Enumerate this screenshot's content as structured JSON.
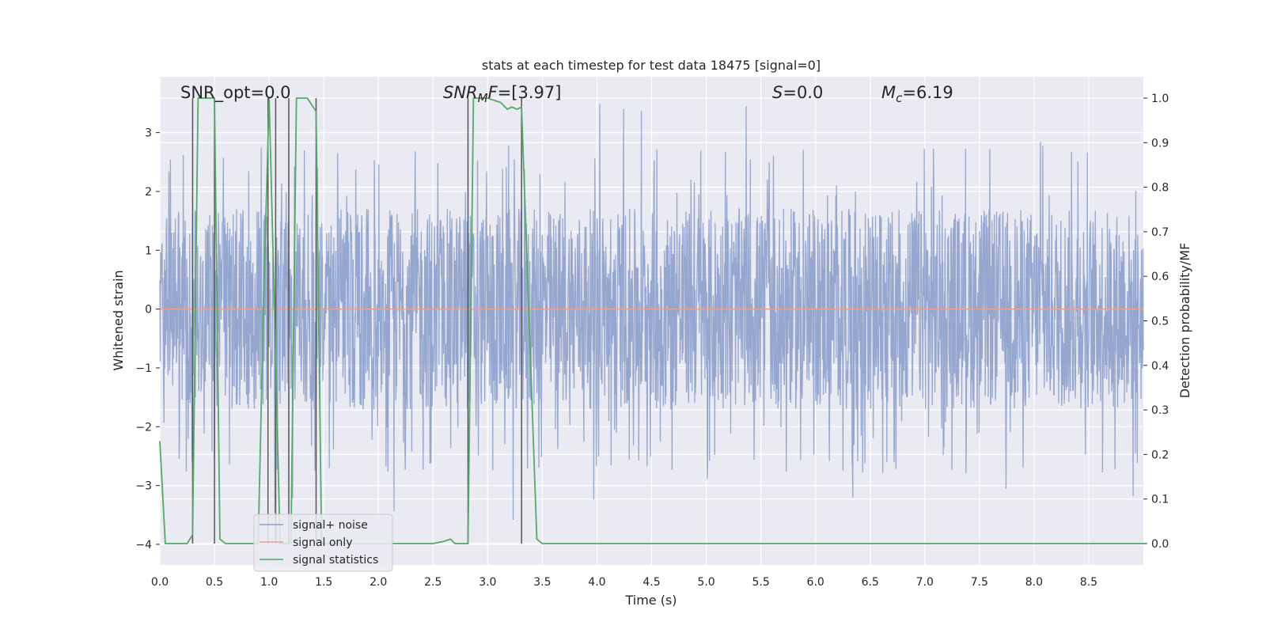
{
  "chart_data": {
    "type": "line",
    "title": "stats at each timestep for test data 18475 [signal=0]",
    "xlabel": "Time (s)",
    "ylabel": "Whitened strain",
    "y2label": "Detection probability/MF",
    "xlim": [
      0.0,
      9.0
    ],
    "ylim": [
      -4.35,
      3.95
    ],
    "y2lim": [
      -0.048,
      1.048
    ],
    "xticks": [
      "0.0",
      "0.5",
      "1.0",
      "1.5",
      "2.0",
      "2.5",
      "3.0",
      "3.5",
      "4.0",
      "4.5",
      "5.0",
      "5.5",
      "6.0",
      "6.5",
      "7.0",
      "7.5",
      "8.0",
      "8.5"
    ],
    "yticks": [
      "3",
      "2",
      "1",
      "0",
      "−1",
      "−2",
      "−3",
      "−4"
    ],
    "y2ticks": [
      "1.0",
      "0.9",
      "0.8",
      "0.7",
      "0.6",
      "0.5",
      "0.4",
      "0.3",
      "0.2",
      "0.1",
      "0.0"
    ],
    "annotations": {
      "snr_opt": "SNR_opt=0.0",
      "snr_mf_base": "SNR",
      "snr_mf_sub": "M",
      "snr_mf_rest": "F=[3.97]",
      "s_sym": "S",
      "s_val": "=0.0",
      "mc_sym": "M",
      "mc_sub": "c",
      "mc_val": "=6.19"
    },
    "legend": {
      "position": "lower-left",
      "entries": [
        "signal+ noise",
        "signal only",
        "signal statistics"
      ]
    },
    "colors": {
      "noise": "#8da0cb",
      "signal": "#e8a090",
      "stats": "#55a868",
      "vlines": "#555555",
      "background": "#eaeaf2",
      "grid": "#ffffff"
    },
    "series": [
      {
        "name": "signal+ noise",
        "kind": "dense-noise",
        "x_range": [
          0.0,
          9.0
        ],
        "typical_min": -1.8,
        "typical_max": 1.8,
        "spike_extremes": [
          -4.0,
          3.6
        ]
      },
      {
        "name": "signal only",
        "x": [
          0.0,
          9.0
        ],
        "y": [
          0.0,
          0.0
        ]
      },
      {
        "name": "signal statistics",
        "axis": "y2",
        "x": [
          0.0,
          0.05,
          0.25,
          0.3,
          0.35,
          0.5,
          0.55,
          0.6,
          0.9,
          0.95,
          1.0,
          1.05,
          1.1,
          1.15,
          1.2,
          1.25,
          1.35,
          1.43,
          1.48,
          1.5,
          2.5,
          2.6,
          2.66,
          2.7,
          2.82,
          2.87,
          3.0,
          3.12,
          3.18,
          3.22,
          3.27,
          3.31,
          3.45,
          3.5,
          9.0
        ],
        "y": [
          0.23,
          0.0,
          0.0,
          0.02,
          1.0,
          1.0,
          0.01,
          0.0,
          0.0,
          0.55,
          1.0,
          0.52,
          0.0,
          0.0,
          0.0,
          1.0,
          1.0,
          0.97,
          0.0,
          0.0,
          0.0,
          0.005,
          0.01,
          0.0,
          0.0,
          1.0,
          1.0,
          0.99,
          0.975,
          0.98,
          0.975,
          0.98,
          0.01,
          0.0,
          0.0
        ]
      }
    ],
    "detection_markers_x": [
      0.3,
      0.5,
      0.99,
      1.06,
      1.18,
      1.43,
      2.82,
      3.31
    ]
  }
}
